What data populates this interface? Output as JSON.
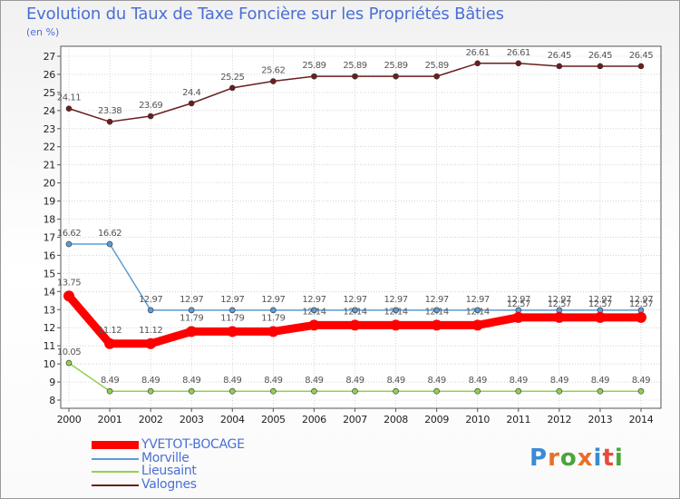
{
  "title": "Evolution du Taux de Taxe Foncière sur les Propriétés Bâties",
  "unit_label": "(en %)",
  "logo": {
    "text": "Proxiti",
    "colors": [
      "#3a8ad6",
      "#e8702a",
      "#4aa63a",
      "#e8702a",
      "#3a8ad6",
      "#e84a3a",
      "#4aa63a"
    ]
  },
  "chart_data": {
    "type": "line",
    "title": "Evolution du Taux de Taxe Foncière sur les Propriétés Bâties",
    "ylabel": "(en %)",
    "xlabel": "",
    "ylim": [
      8,
      27
    ],
    "yticks": [
      8,
      9,
      10,
      11,
      12,
      13,
      14,
      15,
      16,
      17,
      18,
      19,
      20,
      21,
      22,
      23,
      24,
      25,
      26,
      27
    ],
    "x": [
      "2000",
      "2001",
      "2002",
      "2003",
      "2004",
      "2005",
      "2006",
      "2007",
      "2008",
      "2009",
      "2010",
      "2011",
      "2012",
      "2013",
      "2014"
    ],
    "series": [
      {
        "name": "Valognes",
        "color": "#6b1e1e",
        "values": [
          24.11,
          23.38,
          23.69,
          24.4,
          25.25,
          25.62,
          25.89,
          25.89,
          25.89,
          25.89,
          26.61,
          26.61,
          26.45,
          26.45,
          26.45
        ]
      },
      {
        "name": "Morville",
        "color": "#5b9bd5",
        "values": [
          16.62,
          16.62,
          12.97,
          12.97,
          12.97,
          12.97,
          12.97,
          12.97,
          12.97,
          12.97,
          12.97,
          12.97,
          12.97,
          12.97,
          12.97
        ]
      },
      {
        "name": "Lieusaint",
        "color": "#92d050",
        "values": [
          10.05,
          8.49,
          8.49,
          8.49,
          8.49,
          8.49,
          8.49,
          8.49,
          8.49,
          8.49,
          8.49,
          8.49,
          8.49,
          8.49,
          8.49
        ]
      },
      {
        "name": "YVETOT-BOCAGE",
        "color": "#ff0000",
        "values": [
          13.75,
          11.12,
          11.12,
          11.79,
          11.79,
          11.79,
          12.14,
          12.14,
          12.14,
          12.14,
          12.14,
          12.57,
          12.57,
          12.57,
          12.57
        ]
      }
    ],
    "legend": [
      "YVETOT-BOCAGE",
      "Morville",
      "Lieusaint",
      "Valognes"
    ]
  }
}
